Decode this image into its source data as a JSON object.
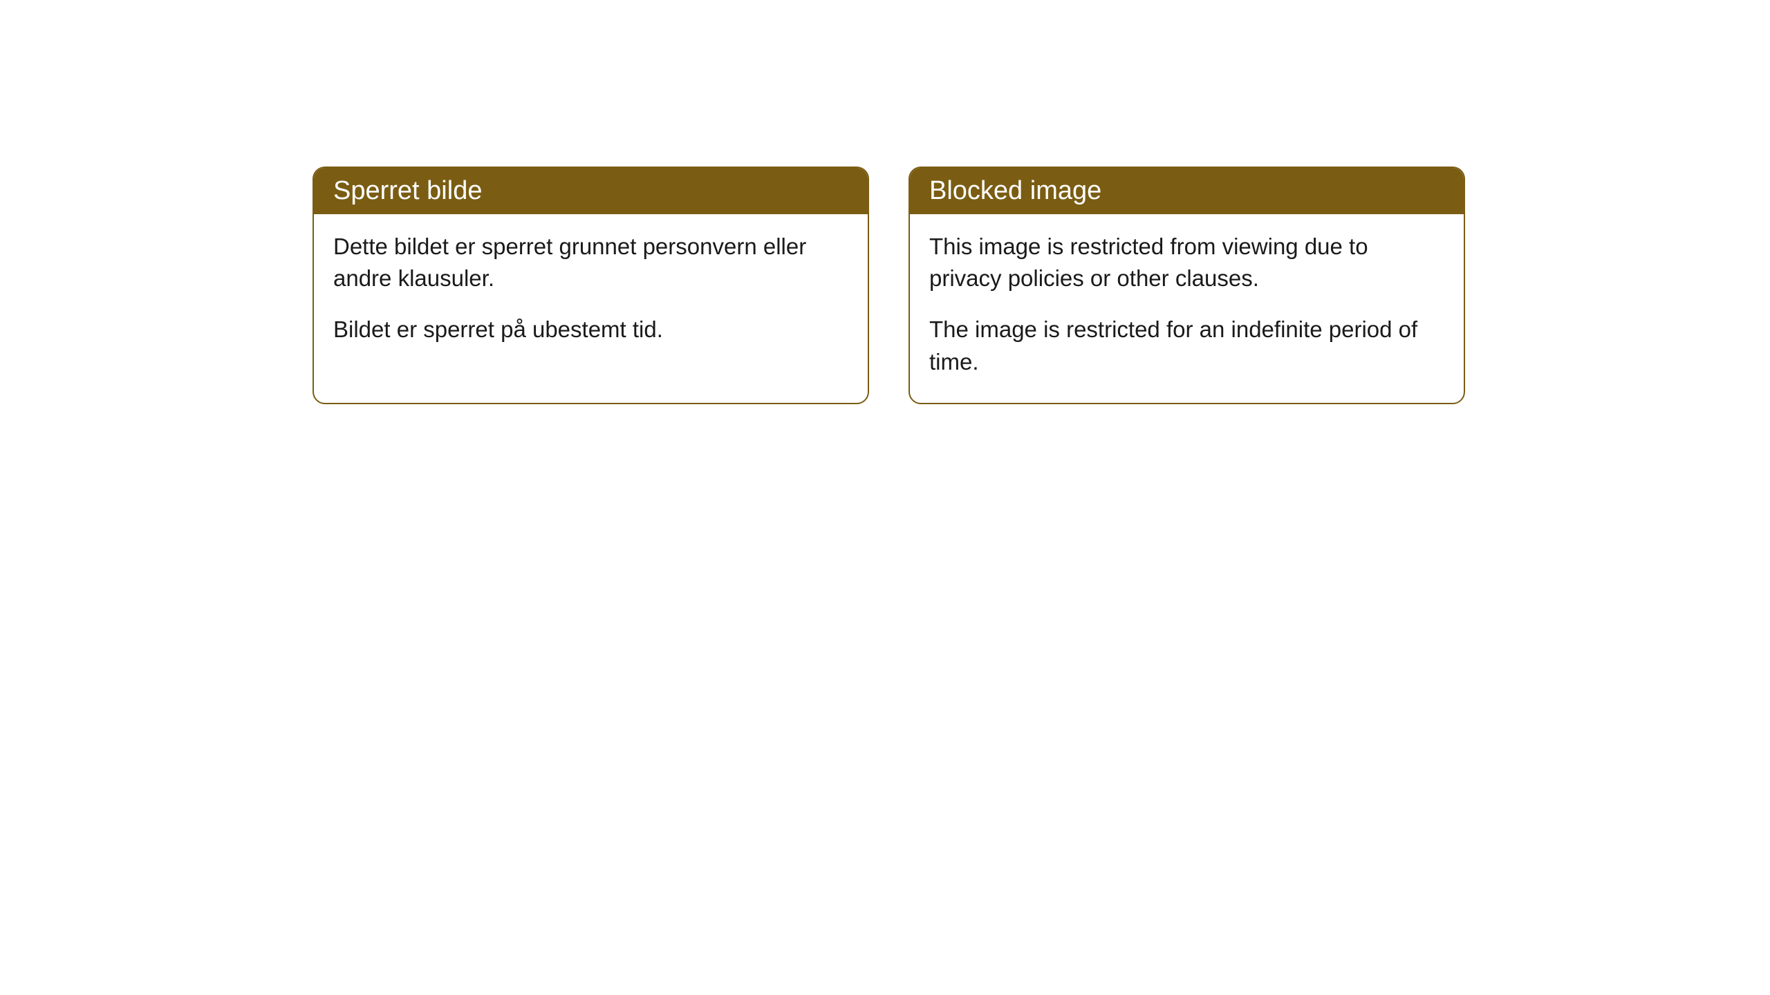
{
  "cards": [
    {
      "title": "Sperret bilde",
      "paragraph1": "Dette bildet er sperret grunnet personvern eller andre klausuler.",
      "paragraph2": "Bildet er sperret på ubestemt tid."
    },
    {
      "title": "Blocked image",
      "paragraph1": "This image is restricted from viewing due to privacy policies or other clauses.",
      "paragraph2": "The image is restricted for an indefinite period of time."
    }
  ],
  "style": {
    "header_bg": "#7a5d13",
    "header_text_color": "#ffffff",
    "border_color": "#7a5d13",
    "body_bg": "#ffffff",
    "body_text_color": "#1a1a1a",
    "border_radius": 18,
    "header_fontsize": 38,
    "body_fontsize": 33
  }
}
